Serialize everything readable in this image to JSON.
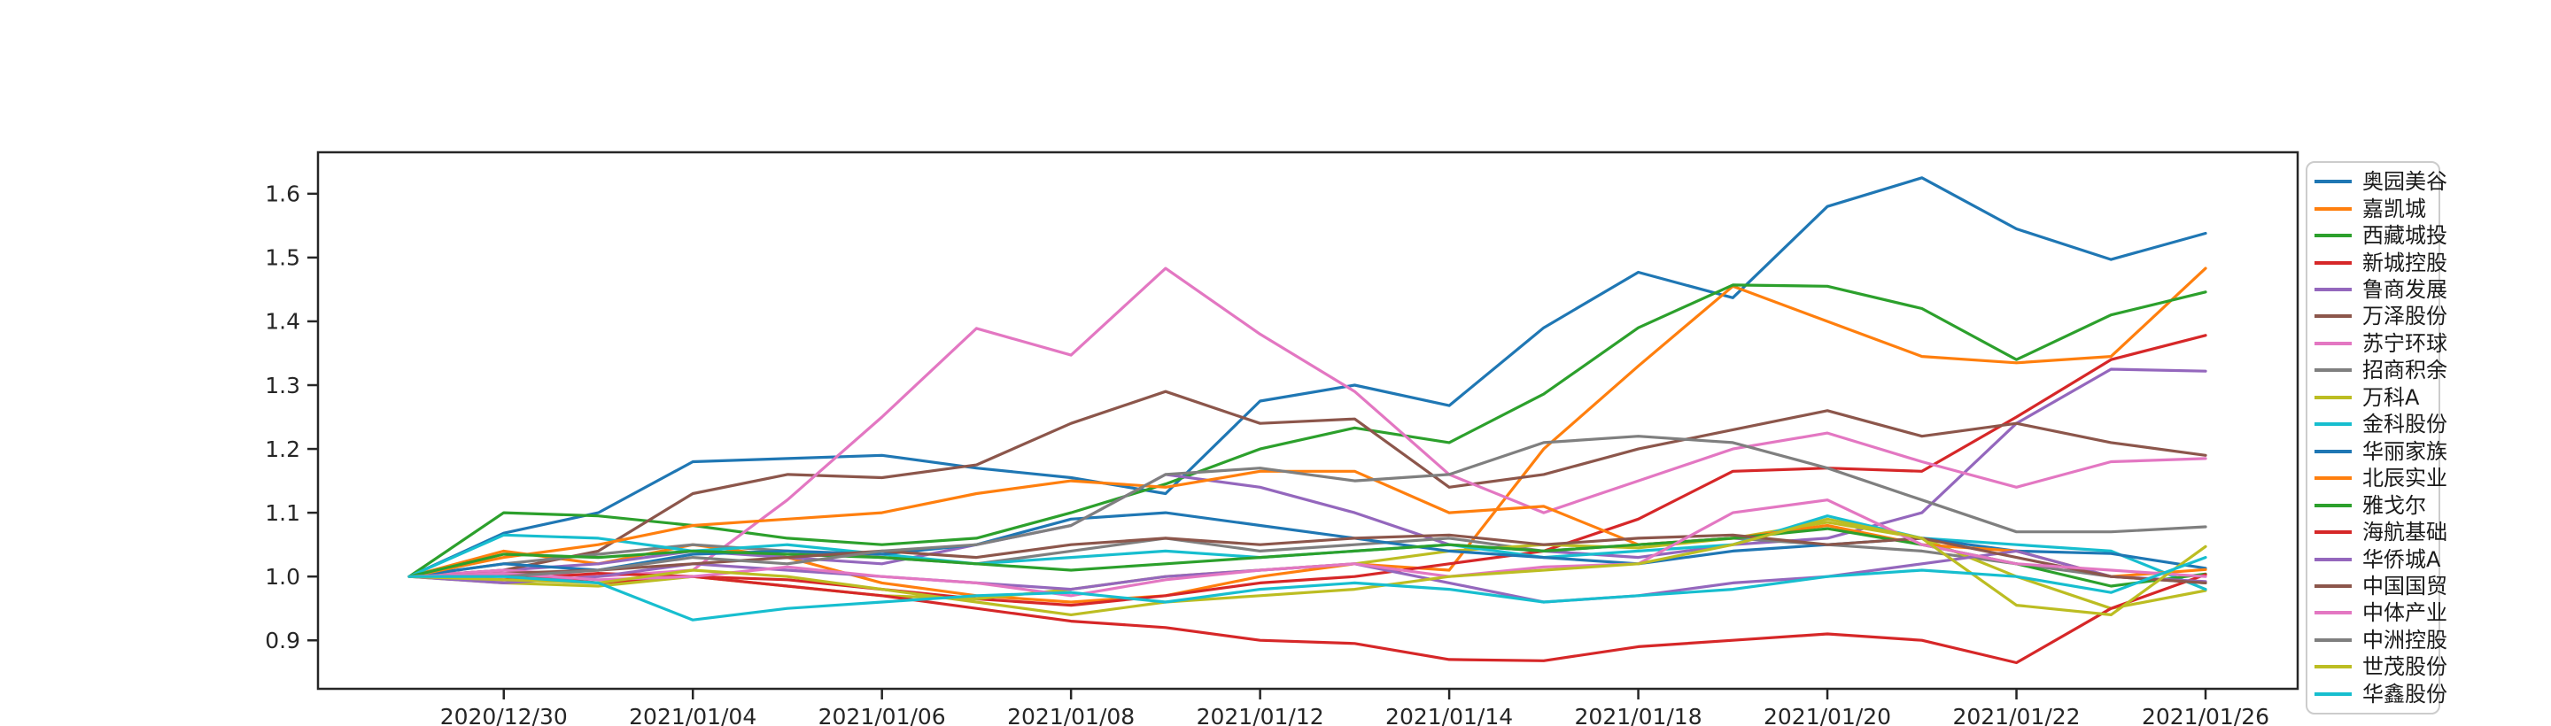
{
  "chart_data": {
    "type": "line",
    "title": "",
    "xlabel": "",
    "ylabel": "",
    "grid": false,
    "legend_position": "right-outside",
    "ylim": [
      0.824,
      1.665
    ],
    "y_ticks": [
      0.9,
      1.0,
      1.1,
      1.2,
      1.3,
      1.4,
      1.5,
      1.6
    ],
    "y_tick_labels": [
      "0.9",
      "1.0",
      "1.1",
      "1.2",
      "1.3",
      "1.4",
      "1.5",
      "1.6"
    ],
    "x_point_count": 20,
    "x_tick_indices": [
      1,
      3,
      5,
      7,
      9,
      11,
      13,
      15,
      17,
      19
    ],
    "x_tick_labels": [
      "2020/12/30",
      "2021/01/04",
      "2021/01/06",
      "2021/01/08",
      "2021/01/12",
      "2021/01/14",
      "2021/01/18",
      "2021/01/20",
      "2021/01/22",
      "2021/01/26"
    ],
    "series": [
      {
        "name": "奥园美谷",
        "color": "#1f77b4",
        "values": [
          1.0,
          1.068,
          1.1,
          1.18,
          1.185,
          1.19,
          1.17,
          1.155,
          1.13,
          1.275,
          1.3,
          1.268,
          1.39,
          1.477,
          1.437,
          1.58,
          1.625,
          1.545,
          1.497,
          1.538
        ]
      },
      {
        "name": "嘉凯城",
        "color": "#ff7f0e",
        "values": [
          1.0,
          1.04,
          1.02,
          1.05,
          1.03,
          0.99,
          0.97,
          0.96,
          0.97,
          1.0,
          1.02,
          1.01,
          1.2,
          1.33,
          1.455,
          1.4,
          1.345,
          1.335,
          1.345,
          1.483
        ]
      },
      {
        "name": "西藏城投",
        "color": "#2ca02c",
        "values": [
          1.0,
          1.1,
          1.095,
          1.08,
          1.06,
          1.05,
          1.06,
          1.1,
          1.145,
          1.2,
          1.233,
          1.21,
          1.286,
          1.39,
          1.457,
          1.455,
          1.42,
          1.34,
          1.41,
          1.446
        ]
      },
      {
        "name": "新城控股",
        "color": "#d62728",
        "values": [
          1.0,
          1.005,
          0.99,
          1.0,
          0.995,
          0.98,
          0.965,
          0.955,
          0.97,
          0.99,
          1.0,
          1.02,
          1.04,
          1.09,
          1.165,
          1.17,
          1.165,
          1.25,
          1.34,
          1.378
        ]
      },
      {
        "name": "鲁商发展",
        "color": "#9467bd",
        "values": [
          1.0,
          1.01,
          1.02,
          1.04,
          1.03,
          1.02,
          1.05,
          1.08,
          1.16,
          1.14,
          1.1,
          1.05,
          1.04,
          1.03,
          1.05,
          1.06,
          1.1,
          1.24,
          1.325,
          1.322
        ]
      },
      {
        "name": "万泽股份",
        "color": "#8c564b",
        "values": [
          1.0,
          1.01,
          1.04,
          1.13,
          1.16,
          1.155,
          1.175,
          1.24,
          1.29,
          1.24,
          1.247,
          1.14,
          1.16,
          1.2,
          1.23,
          1.26,
          1.22,
          1.24,
          1.21,
          1.19
        ]
      },
      {
        "name": "苏宁环球",
        "color": "#e377c2",
        "values": [
          1.0,
          1.01,
          1.0,
          1.01,
          1.12,
          1.25,
          1.389,
          1.347,
          1.483,
          1.38,
          1.29,
          1.16,
          1.1,
          1.15,
          1.2,
          1.225,
          1.18,
          1.14,
          1.18,
          1.185
        ]
      },
      {
        "name": "招商积余",
        "color": "#7f7f7f",
        "values": [
          1.0,
          1.02,
          1.035,
          1.05,
          1.04,
          1.03,
          1.02,
          1.04,
          1.06,
          1.04,
          1.05,
          1.06,
          1.04,
          1.05,
          1.06,
          1.05,
          1.04,
          1.02,
          1.0,
          0.99
        ]
      },
      {
        "name": "万科A",
        "color": "#bcbd22",
        "values": [
          1.0,
          0.99,
          0.985,
          1.0,
          0.985,
          0.97,
          0.965,
          0.98,
          1.0,
          1.01,
          1.02,
          1.04,
          1.05,
          1.045,
          1.06,
          1.085,
          1.06,
          1.0,
          0.95,
          0.978
        ]
      },
      {
        "name": "金科股份",
        "color": "#17becf",
        "values": [
          1.0,
          1.065,
          1.06,
          1.04,
          1.05,
          1.035,
          1.02,
          1.03,
          1.04,
          1.03,
          1.04,
          1.05,
          1.03,
          1.04,
          1.05,
          1.095,
          1.06,
          1.05,
          1.04,
          0.98
        ]
      },
      {
        "name": "华丽家族",
        "color": "#1f77b4",
        "values": [
          1.0,
          1.02,
          1.01,
          1.035,
          1.04,
          1.035,
          1.05,
          1.09,
          1.1,
          1.08,
          1.06,
          1.04,
          1.03,
          1.02,
          1.04,
          1.05,
          1.06,
          1.04,
          1.036,
          1.013
        ]
      },
      {
        "name": "北辰实业",
        "color": "#ff7f0e",
        "values": [
          1.0,
          1.03,
          1.05,
          1.08,
          1.09,
          1.1,
          1.13,
          1.15,
          1.14,
          1.165,
          1.165,
          1.1,
          1.11,
          1.05,
          1.06,
          1.08,
          1.05,
          1.04,
          1.0,
          1.011
        ]
      },
      {
        "name": "雅戈尔",
        "color": "#2ca02c",
        "values": [
          1.0,
          1.035,
          1.03,
          1.04,
          1.035,
          1.03,
          1.02,
          1.01,
          1.02,
          1.03,
          1.04,
          1.05,
          1.04,
          1.05,
          1.06,
          1.075,
          1.05,
          1.02,
          0.985,
          1.004
        ]
      },
      {
        "name": "海航基础",
        "color": "#d62728",
        "values": [
          1.0,
          0.995,
          1.005,
          1.0,
          0.985,
          0.97,
          0.95,
          0.93,
          0.92,
          0.9,
          0.895,
          0.87,
          0.868,
          0.89,
          0.9,
          0.91,
          0.9,
          0.865,
          0.95,
          1.003
        ]
      },
      {
        "name": "华侨城A",
        "color": "#9467bd",
        "values": [
          1.0,
          0.99,
          1.0,
          1.02,
          1.01,
          1.0,
          0.99,
          0.98,
          1.0,
          1.01,
          1.02,
          0.99,
          0.96,
          0.97,
          0.99,
          1.0,
          1.02,
          1.04,
          1.0,
          0.992
        ]
      },
      {
        "name": "中国国贸",
        "color": "#8c564b",
        "values": [
          1.0,
          1.005,
          1.01,
          1.02,
          1.03,
          1.04,
          1.03,
          1.05,
          1.06,
          1.05,
          1.06,
          1.065,
          1.05,
          1.06,
          1.065,
          1.05,
          1.06,
          1.03,
          1.0,
          0.99
        ]
      },
      {
        "name": "中体产业",
        "color": "#e377c2",
        "values": [
          1.0,
          1.005,
          0.995,
          1.0,
          1.015,
          1.0,
          0.99,
          0.97,
          0.995,
          1.01,
          1.02,
          1.0,
          1.015,
          1.02,
          1.1,
          1.12,
          1.05,
          1.02,
          1.01,
          1.0
        ]
      },
      {
        "name": "中洲控股",
        "color": "#7f7f7f",
        "values": [
          1.0,
          1.0,
          1.01,
          1.03,
          1.02,
          1.04,
          1.05,
          1.08,
          1.16,
          1.17,
          1.15,
          1.16,
          1.21,
          1.22,
          1.21,
          1.17,
          1.12,
          1.07,
          1.07,
          1.078
        ]
      },
      {
        "name": "世茂股份",
        "color": "#bcbd22",
        "values": [
          1.0,
          0.995,
          0.99,
          1.01,
          1.0,
          0.98,
          0.96,
          0.94,
          0.96,
          0.97,
          0.98,
          1.0,
          1.01,
          1.02,
          1.05,
          1.09,
          1.06,
          0.955,
          0.94,
          1.047
        ]
      },
      {
        "name": "华鑫股份",
        "color": "#17becf",
        "values": [
          1.0,
          1.0,
          0.99,
          0.932,
          0.95,
          0.96,
          0.97,
          0.975,
          0.96,
          0.98,
          0.99,
          0.98,
          0.96,
          0.97,
          0.98,
          1.0,
          1.01,
          1.0,
          0.975,
          1.03
        ]
      }
    ],
    "axis_color": "#262626",
    "tick_label_color": "#262626"
  }
}
